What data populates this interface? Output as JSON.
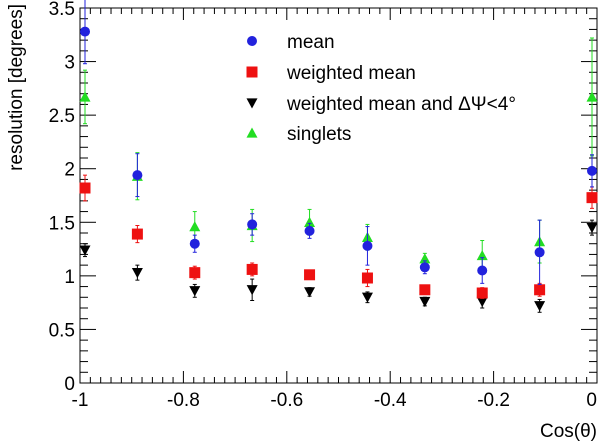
{
  "chart_data": {
    "type": "scatter",
    "title": "",
    "xlabel": "Cos(θ)",
    "ylabel": "resolution [degrees]",
    "xlim": [
      -1.0,
      0.0
    ],
    "ylim": [
      0,
      3.5
    ],
    "xticks": [
      -1,
      -0.8,
      -0.6,
      -0.4,
      -0.2,
      0
    ],
    "xtick_labels": [
      "-1",
      "-0.8",
      "-0.6",
      "-0.4",
      "-0.2",
      "0"
    ],
    "yticks": [
      0,
      0.5,
      1,
      1.5,
      2,
      2.5,
      3,
      3.5
    ],
    "ytick_labels": [
      "0",
      "0.5",
      "1",
      "1.5",
      "2",
      "2.5",
      "3",
      "3.5"
    ],
    "legend_position": "top-center",
    "x": [
      -1.0,
      -0.889,
      -0.778,
      -0.667,
      -0.556,
      -0.444,
      -0.333,
      -0.222,
      -0.111,
      0.0
    ],
    "series": [
      {
        "name": "mean",
        "color": "#2222dd",
        "marker": "circle",
        "values": [
          3.28,
          1.94,
          1.3,
          1.48,
          1.42,
          1.28,
          1.08,
          1.05,
          1.22,
          1.98
        ],
        "errors": [
          0.3,
          0.2,
          0.08,
          0.1,
          0.07,
          0.18,
          0.06,
          0.12,
          0.3,
          0.15
        ]
      },
      {
        "name": "weighted mean",
        "color": "#ee1111",
        "marker": "square",
        "values": [
          1.82,
          1.39,
          1.03,
          1.06,
          1.01,
          0.98,
          0.87,
          0.84,
          0.87,
          1.73
        ],
        "errors": [
          0.12,
          0.08,
          0.06,
          0.06,
          0.04,
          0.08,
          0.04,
          0.05,
          0.06,
          0.1
        ]
      },
      {
        "name": "weighted mean and ΔΨ<4°",
        "color": "#000000",
        "marker": "triangle-down",
        "values": [
          1.24,
          1.03,
          0.86,
          0.87,
          0.85,
          0.8,
          0.76,
          0.76,
          0.72,
          1.45
        ],
        "errors": [
          0.06,
          0.07,
          0.06,
          0.1,
          0.04,
          0.05,
          0.04,
          0.06,
          0.06,
          0.07
        ]
      },
      {
        "name": "singlets",
        "color": "#22dd22",
        "marker": "triangle-up",
        "values": [
          2.67,
          1.93,
          1.46,
          1.47,
          1.5,
          1.36,
          1.16,
          1.19,
          1.32,
          2.67
        ],
        "errors": [
          0.25,
          0.22,
          0.14,
          0.15,
          0.12,
          0.12,
          0.05,
          0.14,
          0.2,
          0.55
        ]
      }
    ]
  }
}
